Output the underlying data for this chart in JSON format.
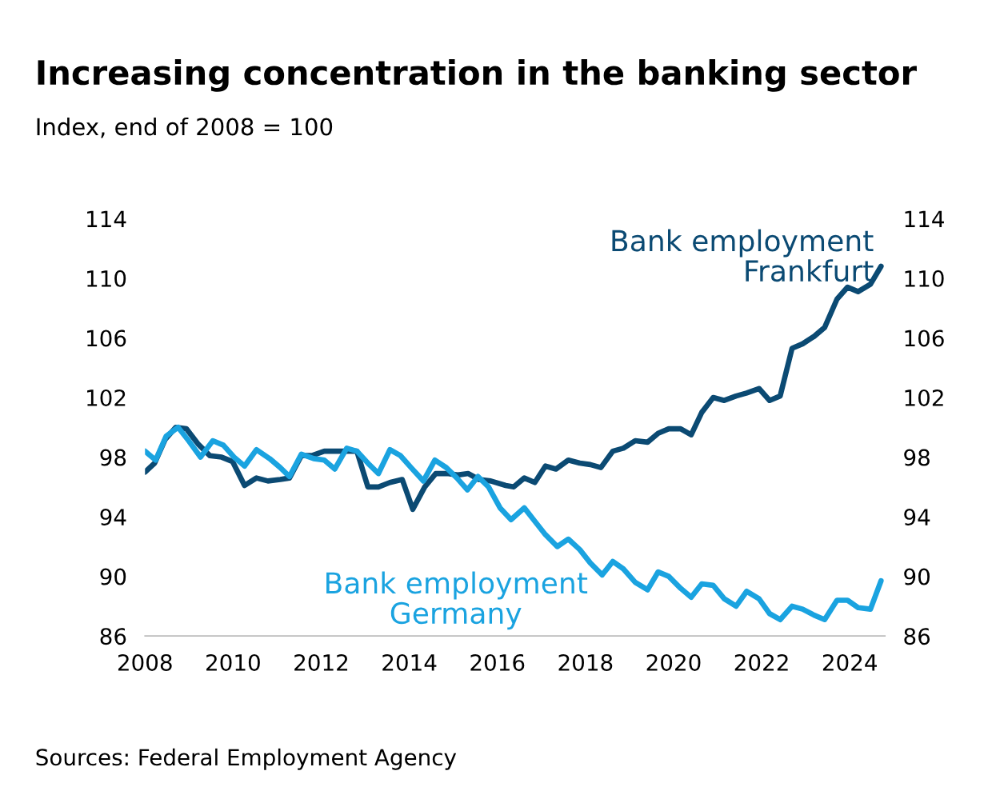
{
  "chart_data": {
    "type": "line",
    "title": "Increasing concentration in the banking sector",
    "subtitle": "Index, end of 2008 = 100",
    "annotations": [
      "Sources: Federal Employment Agency"
    ],
    "xlim": [
      2008,
      2024.8
    ],
    "xticks": [
      2008,
      2010,
      2012,
      2014,
      2016,
      2018,
      2020,
      2022,
      2024
    ],
    "ylim": [
      86,
      114
    ],
    "yticks": [
      86,
      90,
      94,
      98,
      102,
      106,
      110,
      114
    ],
    "y2lim": [
      86,
      114
    ],
    "y2ticks": [
      86,
      90,
      94,
      98,
      102,
      106,
      110,
      114
    ],
    "grid": false,
    "legend": false,
    "marker": "none",
    "line_style": "solid",
    "series": [
      {
        "name": "Bank employment Frankfurt",
        "color": "#0b4a73",
        "x": [
          2008.0,
          2008.22,
          2008.46,
          2008.7,
          2008.94,
          2009.2,
          2009.47,
          2009.74,
          2009.99,
          2010.26,
          2010.53,
          2010.79,
          2011.07,
          2011.28,
          2011.55,
          2011.79,
          2012.07,
          2012.33,
          2012.58,
          2012.81,
          2013.06,
          2013.3,
          2013.56,
          2013.84,
          2014.08,
          2014.35,
          2014.6,
          2014.86,
          2015.1,
          2015.34,
          2015.58,
          2015.85,
          2016.19,
          2016.37,
          2016.61,
          2016.85,
          2017.09,
          2017.33,
          2017.61,
          2017.87,
          2018.11,
          2018.35,
          2018.62,
          2018.86,
          2019.13,
          2019.41,
          2019.65,
          2019.89,
          2020.16,
          2020.4,
          2020.64,
          2020.9,
          2021.15,
          2021.42,
          2021.66,
          2021.94,
          2022.18,
          2022.42,
          2022.69,
          2022.93,
          2023.19,
          2023.43,
          2023.71,
          2023.95,
          2024.19,
          2024.47,
          2024.71
        ],
        "values": [
          97.0,
          97.6,
          99.2,
          100.0,
          99.9,
          98.9,
          98.1,
          98.0,
          97.7,
          96.1,
          96.6,
          96.4,
          96.5,
          96.6,
          98.1,
          98.1,
          98.4,
          98.4,
          98.4,
          98.4,
          96.0,
          96.0,
          96.3,
          96.5,
          94.5,
          96.0,
          96.9,
          96.9,
          96.8,
          96.9,
          96.5,
          96.4,
          96.1,
          96.0,
          96.6,
          96.3,
          97.4,
          97.2,
          97.8,
          97.6,
          97.5,
          97.3,
          98.4,
          98.6,
          99.1,
          99.0,
          99.6,
          99.9,
          99.9,
          99.5,
          101.0,
          102.0,
          101.8,
          102.1,
          102.3,
          102.6,
          101.8,
          102.1,
          105.3,
          105.6,
          106.1,
          106.7,
          108.6,
          109.4,
          109.1,
          109.6,
          110.8
        ]
      },
      {
        "name": "Bank employment Germany",
        "color": "#1aa3e0",
        "x": [
          2008.0,
          2008.24,
          2008.48,
          2008.75,
          2008.99,
          2009.26,
          2009.54,
          2009.78,
          2010.02,
          2010.26,
          2010.53,
          2010.83,
          2011.07,
          2011.28,
          2011.55,
          2011.83,
          2012.07,
          2012.31,
          2012.58,
          2012.81,
          2013.06,
          2013.3,
          2013.56,
          2013.8,
          2014.04,
          2014.32,
          2014.58,
          2014.84,
          2015.08,
          2015.32,
          2015.56,
          2015.8,
          2016.06,
          2016.31,
          2016.61,
          2016.85,
          2017.09,
          2017.36,
          2017.61,
          2017.87,
          2018.11,
          2018.38,
          2018.62,
          2018.86,
          2019.13,
          2019.41,
          2019.65,
          2019.89,
          2020.16,
          2020.4,
          2020.64,
          2020.9,
          2021.15,
          2021.42,
          2021.66,
          2021.94,
          2022.18,
          2022.42,
          2022.69,
          2022.93,
          2023.19,
          2023.43,
          2023.71,
          2023.95,
          2024.19,
          2024.47,
          2024.71
        ],
        "values": [
          98.4,
          97.8,
          99.4,
          100.0,
          99.1,
          98.0,
          99.1,
          98.8,
          98.0,
          97.4,
          98.5,
          97.9,
          97.3,
          96.7,
          98.2,
          97.9,
          97.8,
          97.2,
          98.6,
          98.4,
          97.6,
          96.9,
          98.5,
          98.1,
          97.3,
          96.4,
          97.8,
          97.3,
          96.6,
          95.8,
          96.7,
          96.0,
          94.6,
          93.8,
          94.6,
          93.7,
          92.8,
          92.0,
          92.5,
          91.8,
          90.9,
          90.1,
          91.0,
          90.5,
          89.6,
          89.1,
          90.3,
          90.0,
          89.2,
          88.6,
          89.5,
          89.4,
          88.5,
          88.0,
          89.0,
          88.5,
          87.5,
          87.1,
          88.0,
          87.8,
          87.4,
          87.1,
          88.4,
          88.4,
          87.9,
          87.8,
          89.7
        ]
      }
    ]
  }
}
